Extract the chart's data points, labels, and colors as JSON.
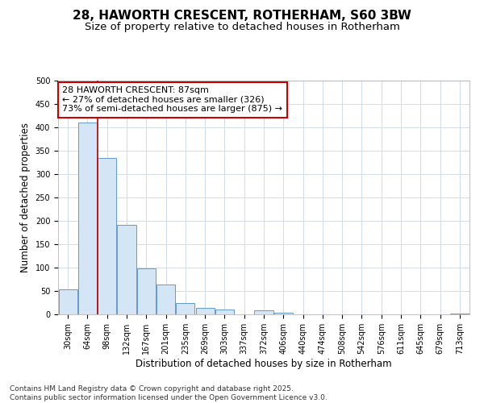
{
  "title_line1": "28, HAWORTH CRESCENT, ROTHERHAM, S60 3BW",
  "title_line2": "Size of property relative to detached houses in Rotherham",
  "xlabel": "Distribution of detached houses by size in Rotherham",
  "ylabel": "Number of detached properties",
  "categories": [
    "30sqm",
    "64sqm",
    "98sqm",
    "132sqm",
    "167sqm",
    "201sqm",
    "235sqm",
    "269sqm",
    "303sqm",
    "337sqm",
    "372sqm",
    "406sqm",
    "440sqm",
    "474sqm",
    "508sqm",
    "542sqm",
    "576sqm",
    "611sqm",
    "645sqm",
    "679sqm",
    "713sqm"
  ],
  "values": [
    53,
    411,
    335,
    192,
    98,
    63,
    25,
    14,
    10,
    0,
    8,
    4,
    0,
    0,
    0,
    0,
    0,
    0,
    0,
    0,
    2
  ],
  "bar_color": "#d4e6f5",
  "bar_edge_color": "#6699cc",
  "vline_x": 1.5,
  "vline_color": "#cc0000",
  "annotation_text": "28 HAWORTH CRESCENT: 87sqm\n← 27% of detached houses are smaller (326)\n73% of semi-detached houses are larger (875) →",
  "annotation_box_color": "#ffffff",
  "annotation_box_edge": "#cc0000",
  "ylim": [
    0,
    500
  ],
  "yticks": [
    0,
    50,
    100,
    150,
    200,
    250,
    300,
    350,
    400,
    450,
    500
  ],
  "footnote": "Contains HM Land Registry data © Crown copyright and database right 2025.\nContains public sector information licensed under the Open Government Licence v3.0.",
  "bg_color": "#ffffff",
  "plot_bg_color": "#ffffff",
  "grid_color": "#d0dce8",
  "title_fontsize": 11,
  "subtitle_fontsize": 9.5,
  "axis_label_fontsize": 8.5,
  "tick_fontsize": 7,
  "annotation_fontsize": 8,
  "footnote_fontsize": 6.5
}
